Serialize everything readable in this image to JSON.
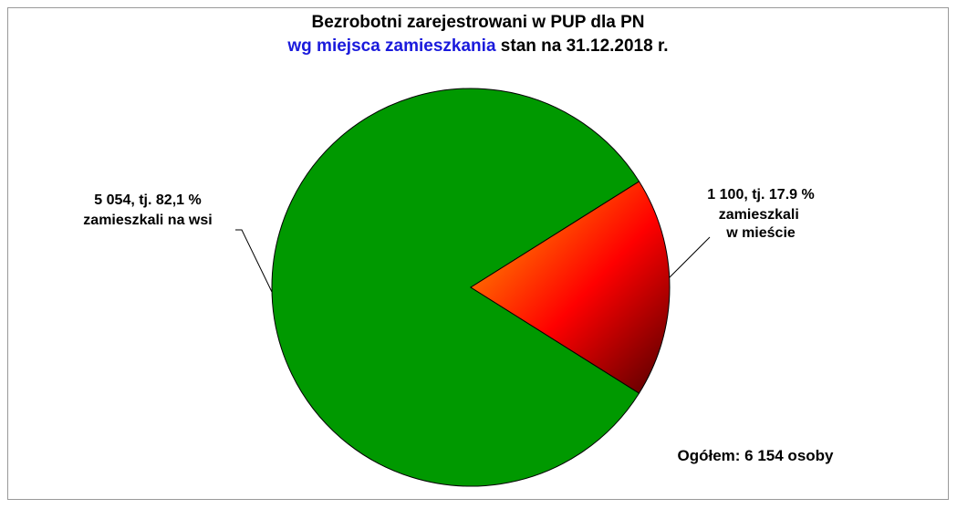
{
  "chart_data": {
    "type": "pie",
    "title": "Bezrobotni zarejestrowani w PUP dla PN",
    "subtitle_highlight": "wg miejsca zamieszkania",
    "subtitle": "stan na 31.12.2018 r.",
    "categories": [
      "zamieszkali na wsi",
      "zamieszkali w mieście"
    ],
    "values": [
      5054,
      1100
    ],
    "value_labels": [
      "5 054, tj. 82,1 %",
      "1 100, tj. 17.9 %"
    ],
    "colors": [
      "#009900",
      "#ff0000"
    ],
    "annotation": "Ogółem: 6 154 osoby"
  }
}
